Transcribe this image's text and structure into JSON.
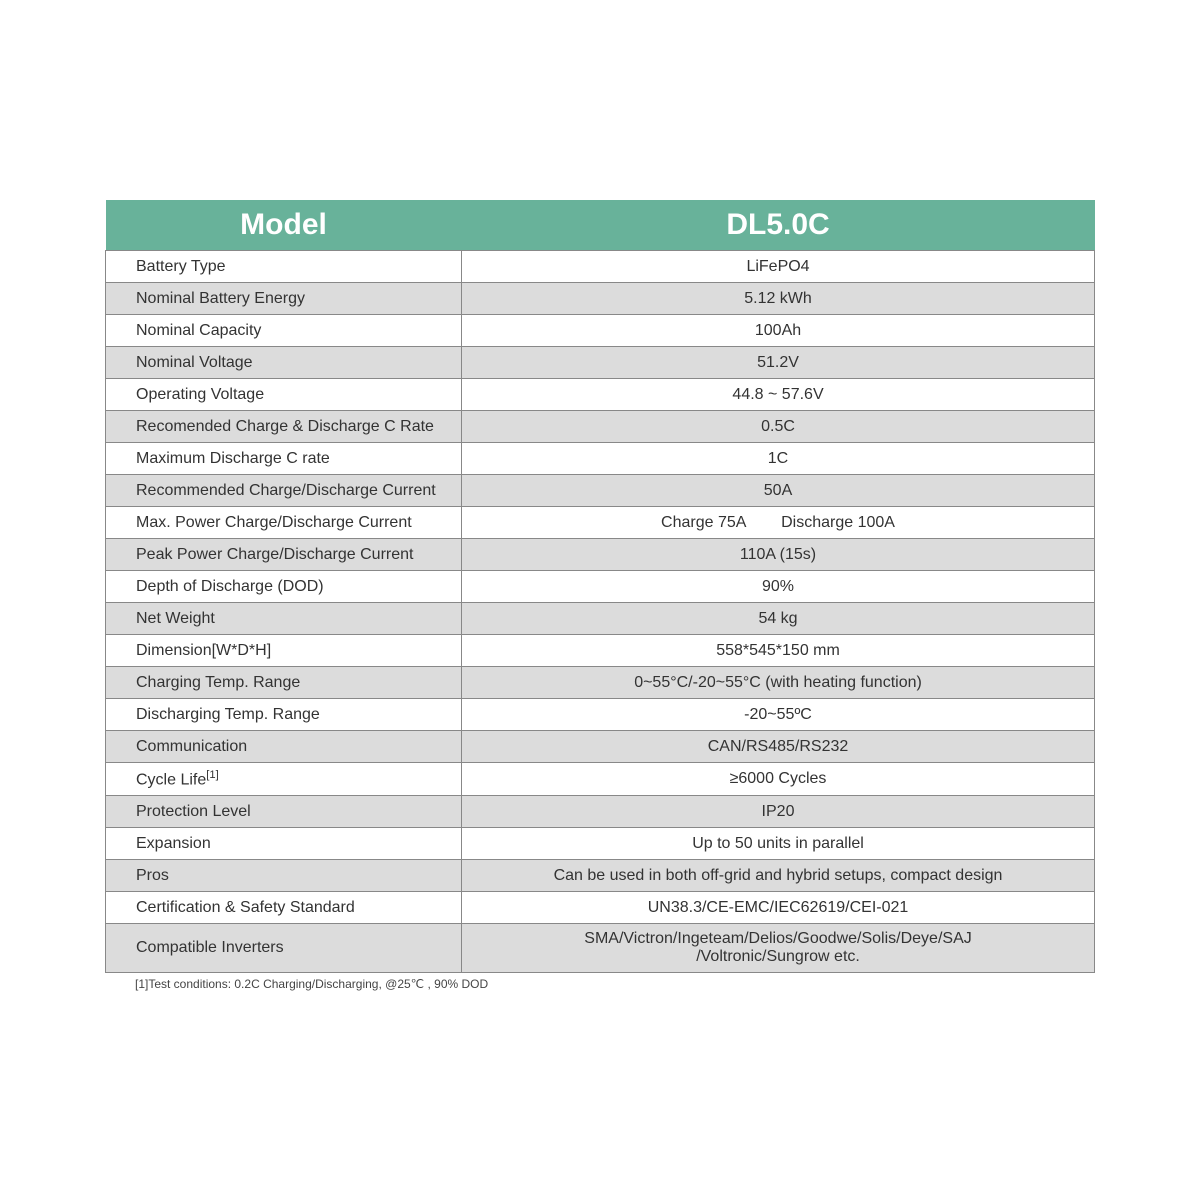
{
  "table": {
    "header": {
      "label": "Model",
      "value": "DL5.0C"
    },
    "header_bg": "#68b29a",
    "header_fg": "#ffffff",
    "row_alt_bg": "#dcdcdc",
    "border_color": "#888888",
    "label_fontsize": 16,
    "header_fontsize": 30,
    "rows": [
      {
        "label": "Battery Type",
        "value": "LiFePO4",
        "alt": false
      },
      {
        "label": "Nominal Battery Energy",
        "value": "5.12 kWh",
        "alt": true
      },
      {
        "label": "Nominal Capacity",
        "value": "100Ah",
        "alt": false
      },
      {
        "label": "Nominal Voltage",
        "value": "51.2V",
        "alt": true
      },
      {
        "label": "Operating Voltage",
        "value": "44.8 ~ 57.6V",
        "alt": false
      },
      {
        "label": "Recomended Charge & Discharge C Rate",
        "value": "0.5C",
        "alt": true
      },
      {
        "label": "Maximum Discharge C rate",
        "value": "1C",
        "alt": false
      },
      {
        "label": "Recommended Charge/Discharge Current",
        "value": "50A",
        "alt": true
      },
      {
        "label": "Max. Power Charge/Discharge Current",
        "value": "Charge 75A        Discharge 100A",
        "alt": false
      },
      {
        "label": "Peak Power Charge/Discharge Current",
        "value": "110A (15s)",
        "alt": true
      },
      {
        "label": "Depth of Discharge (DOD)",
        "value": "90%",
        "alt": false
      },
      {
        "label": "Net Weight",
        "value": "54 kg",
        "alt": true
      },
      {
        "label": "Dimension[W*D*H]",
        "value": "558*545*150 mm",
        "alt": false
      },
      {
        "label": "Charging Temp. Range",
        "value": "0~55°C/-20~55°C (with heating function)",
        "alt": true
      },
      {
        "label": "Discharging Temp. Range",
        "value": "-20~55ºC",
        "alt": false
      },
      {
        "label": "Communication",
        "value": "CAN/RS485/RS232",
        "alt": true
      },
      {
        "label": "Cycle Life",
        "sup": "[1]",
        "value": "≥6000 Cycles",
        "alt": false
      },
      {
        "label": "Protection Level",
        "value": "IP20",
        "alt": true
      },
      {
        "label": "Expansion",
        "value": "Up to 50 units in parallel",
        "alt": false
      },
      {
        "label": "Pros",
        "value": "Can be used in both off-grid and hybrid setups, compact design",
        "alt": true
      },
      {
        "label": "Certification & Safety Standard",
        "value": "UN38.3/CE-EMC/IEC62619/CEI-021",
        "alt": false
      },
      {
        "label": "Compatible Inverters",
        "value": "SMA/Victron/Ingeteam/Delios/Goodwe/Solis/Deye/SAJ\n/Voltronic/Sungrow etc.",
        "alt": true,
        "tall": true
      }
    ],
    "footnote": "[1]Test conditions: 0.2C Charging/Discharging, @25℃ , 90% DOD"
  }
}
